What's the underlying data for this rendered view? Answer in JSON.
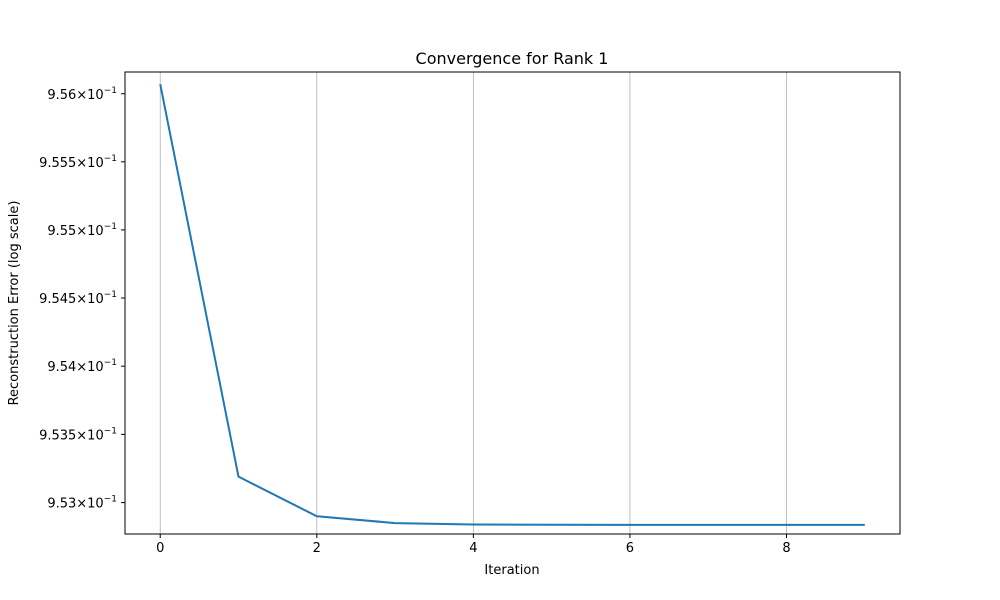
{
  "chart_data": {
    "type": "line",
    "title": "Convergence for Rank 1",
    "xlabel": "Iteration",
    "ylabel": "Reconstruction Error (log scale)",
    "yscale": "log",
    "grid": "x-only",
    "xlim": [
      -0.45,
      9.45
    ],
    "ylim": [
      0.95277,
      0.95616
    ],
    "x_ticks": [
      0,
      2,
      4,
      6,
      8
    ],
    "x_tick_labels": [
      "0",
      "2",
      "4",
      "6",
      "8"
    ],
    "y_ticks": [
      0.953,
      0.9535,
      0.954,
      0.9545,
      0.955,
      0.9555,
      0.956
    ],
    "y_tick_mantissas": [
      "9.53",
      "9.535",
      "9.54",
      "9.545",
      "9.55",
      "9.555",
      "9.56"
    ],
    "y_tick_base": "10",
    "y_tick_exponent": "−1",
    "series": [
      {
        "color": "#1f77b4",
        "x": [
          0,
          1,
          2,
          3,
          4,
          5,
          6,
          7,
          8,
          9
        ],
        "y": [
          0.95607,
          0.95319,
          0.9529,
          0.95285,
          0.95284,
          0.952838,
          0.952837,
          0.952837,
          0.952837,
          0.952837
        ]
      }
    ]
  }
}
